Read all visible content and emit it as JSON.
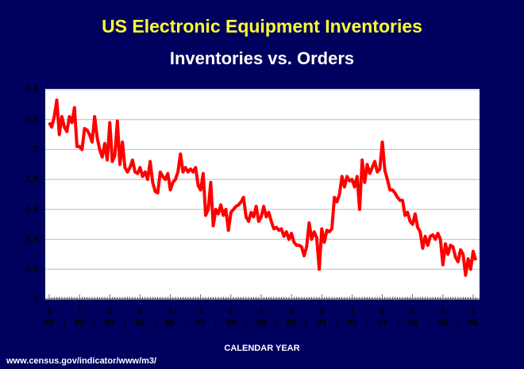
{
  "chart_data": {
    "type": "line",
    "title": "US Electronic Equipment Inventories",
    "subtitle": "Inventories vs. Orders",
    "xlabel": "CALENDAR YEAR",
    "source": "www.census.gov/indicator/www/m3/",
    "categories": [
      "1",
      null,
      null,
      null,
      null,
      null,
      null,
      null,
      null,
      null,
      null,
      null,
      "1",
      null,
      null,
      null,
      null,
      null,
      null,
      null,
      null,
      null,
      null,
      null,
      "1",
      null,
      null,
      null,
      null,
      null,
      null,
      null,
      null,
      null,
      null,
      null,
      "1",
      null,
      null,
      null,
      null,
      null,
      null,
      null,
      null,
      null,
      null,
      null,
      "1",
      null,
      null,
      null,
      null,
      null,
      null,
      null,
      null,
      null,
      null,
      null,
      "1",
      null,
      null,
      null,
      null,
      null,
      null,
      null,
      null,
      null,
      null,
      null,
      "1",
      null,
      null,
      null,
      null,
      null,
      null,
      null,
      null,
      null,
      null,
      null,
      "1",
      null,
      null,
      null,
      null,
      null,
      null,
      null,
      null,
      null,
      null,
      null,
      "1",
      null,
      null,
      null,
      null,
      null,
      null,
      null,
      null,
      null,
      null,
      null,
      "1",
      null,
      null,
      null,
      null,
      null,
      null,
      null,
      null,
      null,
      null,
      null,
      "1",
      null,
      null,
      null,
      null,
      null,
      null,
      null,
      null,
      null,
      null,
      null,
      "1",
      null,
      null,
      null,
      null,
      null,
      null,
      null,
      null,
      null,
      null,
      null,
      "1",
      null,
      null,
      null,
      null,
      null,
      null,
      null,
      null,
      null,
      null,
      null,
      "1",
      null,
      null,
      null,
      null,
      null,
      null,
      null,
      null,
      null,
      null,
      null,
      "1",
      null
    ],
    "year_labels": [
      "92",
      "93",
      "94",
      "95",
      "96",
      "97",
      "98",
      "99",
      "00",
      "01",
      "02",
      "03",
      "04",
      "05",
      "06"
    ],
    "series": [
      {
        "name": "Inventories vs. Orders",
        "color": "#ff0000",
        "values": [
          2.18,
          2.15,
          2.22,
          2.33,
          2.1,
          2.22,
          2.15,
          2.12,
          2.22,
          2.18,
          2.28,
          2.02,
          2.02,
          2.0,
          2.14,
          2.13,
          2.1,
          2.05,
          2.22,
          2.08,
          2.0,
          1.95,
          2.04,
          1.93,
          2.18,
          1.92,
          1.96,
          2.19,
          1.9,
          2.05,
          1.88,
          1.85,
          1.88,
          1.93,
          1.85,
          1.84,
          1.88,
          1.82,
          1.85,
          1.8,
          1.92,
          1.78,
          1.72,
          1.71,
          1.85,
          1.82,
          1.8,
          1.84,
          1.73,
          1.78,
          1.8,
          1.85,
          1.97,
          1.85,
          1.88,
          1.85,
          1.87,
          1.85,
          1.88,
          1.76,
          1.73,
          1.84,
          1.56,
          1.6,
          1.78,
          1.49,
          1.6,
          1.57,
          1.63,
          1.56,
          1.6,
          1.46,
          1.58,
          1.6,
          1.62,
          1.63,
          1.65,
          1.68,
          1.55,
          1.52,
          1.58,
          1.55,
          1.62,
          1.52,
          1.55,
          1.62,
          1.55,
          1.58,
          1.52,
          1.47,
          1.48,
          1.46,
          1.47,
          1.42,
          1.45,
          1.4,
          1.44,
          1.38,
          1.36,
          1.36,
          1.35,
          1.29,
          1.35,
          1.51,
          1.4,
          1.45,
          1.41,
          1.2,
          1.47,
          1.38,
          1.46,
          1.45,
          1.47,
          1.68,
          1.65,
          1.7,
          1.82,
          1.75,
          1.82,
          1.79,
          1.8,
          1.75,
          1.82,
          1.6,
          1.93,
          1.78,
          1.9,
          1.84,
          1.88,
          1.92,
          1.85,
          1.87,
          2.05,
          1.86,
          1.8,
          1.73,
          1.73,
          1.71,
          1.68,
          1.66,
          1.66,
          1.56,
          1.58,
          1.52,
          1.5,
          1.57,
          1.48,
          1.45,
          1.34,
          1.42,
          1.36,
          1.42,
          1.43,
          1.4,
          1.44,
          1.4,
          1.23,
          1.37,
          1.3,
          1.36,
          1.35,
          1.28,
          1.25,
          1.33,
          1.3,
          1.16,
          1.27,
          1.2,
          1.32,
          1.26
        ]
      }
    ],
    "ylim": [
      1,
      2.4
    ],
    "yticks": [
      1,
      1.2,
      1.4,
      1.6,
      1.8,
      2,
      2.2,
      2.4
    ],
    "grid": true
  }
}
